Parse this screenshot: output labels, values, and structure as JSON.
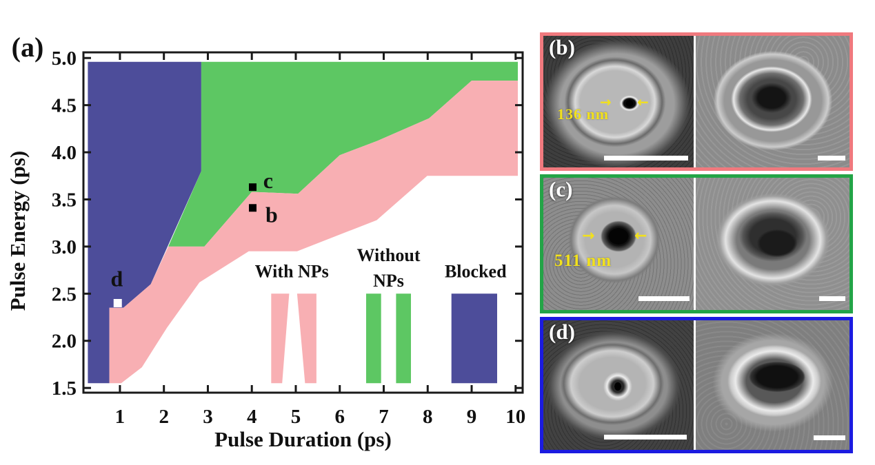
{
  "colors": {
    "annotation": "#F2E11D",
    "scale_bar": "#FFFFFF",
    "axis": "#1a1a1a",
    "region_blocked": "#4D4D9A",
    "region_without_nps": "#5DC763",
    "region_with_nps": "#F8AFB3"
  },
  "icons": {
    "arrow_right": "→",
    "arrow_left": "←"
  },
  "chart_data": {
    "type": "area",
    "title": "",
    "panel_label": "(a)",
    "xlabel": "Pulse Duration (ps)",
    "ylabel": "Pulse Energy (ps)",
    "xlim": [
      0.17,
      10.16
    ],
    "ylim": [
      1.45,
      5.06
    ],
    "xticks": [
      1,
      2,
      3,
      4,
      5,
      6,
      7,
      8,
      9,
      10
    ],
    "yticks": [
      1.5,
      2.0,
      2.5,
      3.0,
      3.5,
      4.0,
      4.5,
      5.0
    ],
    "grid": false,
    "legend_position": "inside lower right",
    "regions": [
      {
        "name": "Blocked",
        "color": "#4D4D9A",
        "points": [
          [
            0.27,
            1.55
          ],
          [
            0.76,
            1.55
          ],
          [
            0.76,
            2.35
          ],
          [
            1.08,
            2.35
          ],
          [
            1.7,
            2.6
          ],
          [
            2.85,
            3.8
          ],
          [
            2.85,
            4.96
          ],
          [
            0.27,
            4.96
          ]
        ]
      },
      {
        "name": "Without NPs",
        "color": "#5DC763",
        "points": [
          [
            2.1,
            3.0
          ],
          [
            2.92,
            3.0
          ],
          [
            4.0,
            3.58
          ],
          [
            5.05,
            3.56
          ],
          [
            6.0,
            3.97
          ],
          [
            6.85,
            4.12
          ],
          [
            8.03,
            4.36
          ],
          [
            9.0,
            4.76
          ],
          [
            10.05,
            4.76
          ],
          [
            10.05,
            4.96
          ],
          [
            2.85,
            4.96
          ],
          [
            2.85,
            3.8
          ]
        ]
      },
      {
        "name": "With NPs",
        "color": "#F8AFB3",
        "points": [
          [
            0.76,
            1.55
          ],
          [
            1.03,
            1.55
          ],
          [
            1.5,
            1.72
          ],
          [
            2.07,
            2.14
          ],
          [
            2.81,
            2.62
          ],
          [
            3.93,
            2.95
          ],
          [
            5.03,
            2.95
          ],
          [
            6.84,
            3.28
          ],
          [
            7.99,
            3.75
          ],
          [
            10.05,
            3.75
          ],
          [
            10.05,
            4.76
          ],
          [
            9.0,
            4.76
          ],
          [
            8.03,
            4.36
          ],
          [
            6.85,
            4.12
          ],
          [
            6.0,
            3.97
          ],
          [
            5.05,
            3.56
          ],
          [
            4.0,
            3.58
          ],
          [
            2.92,
            3.0
          ],
          [
            2.1,
            3.0
          ],
          [
            1.7,
            2.6
          ],
          [
            1.08,
            2.35
          ],
          [
            0.76,
            2.35
          ]
        ]
      }
    ],
    "markers": [
      {
        "name": "b",
        "x": 4.02,
        "y": 3.41,
        "fill": "#000000",
        "size": 11,
        "label": {
          "text": "b",
          "x": 4.45,
          "y": 3.34,
          "color": "#000000"
        }
      },
      {
        "name": "c",
        "x": 4.02,
        "y": 3.63,
        "fill": "#000000",
        "size": 11,
        "label": {
          "text": "c",
          "x": 4.37,
          "y": 3.7,
          "color": "#000000"
        }
      },
      {
        "name": "d",
        "x": 0.95,
        "y": 2.4,
        "fill": "#ffffff",
        "size": 12,
        "label": {
          "text": "d",
          "x": 0.93,
          "y": 2.66,
          "color": "#ffffff"
        }
      }
    ],
    "legend": {
      "items": [
        {
          "name": "With NPs",
          "color": "#F8AFB3",
          "texts": [
            {
              "text": "With NPs",
              "x": 4.91,
              "y": 2.74
            }
          ],
          "polygons": [
            [
              [
                4.44,
                2.5
              ],
              [
                4.85,
                2.5
              ],
              [
                4.69,
                1.55
              ],
              [
                4.44,
                1.55
              ]
            ],
            [
              [
                5.03,
                2.5
              ],
              [
                5.47,
                2.5
              ],
              [
                5.47,
                1.55
              ],
              [
                5.21,
                1.55
              ]
            ]
          ]
        },
        {
          "name": "Without NPs",
          "color": "#5DC763",
          "texts": [
            {
              "text": "Without",
              "x": 7.11,
              "y": 2.91
            },
            {
              "text": "NPs",
              "x": 7.11,
              "y": 2.64
            }
          ],
          "polygons": [
            [
              [
                6.6,
                2.5
              ],
              [
                6.94,
                2.5
              ],
              [
                6.94,
                1.55
              ],
              [
                6.6,
                1.55
              ]
            ],
            [
              [
                7.28,
                2.5
              ],
              [
                7.62,
                2.5
              ],
              [
                7.62,
                1.55
              ],
              [
                7.28,
                1.55
              ]
            ]
          ]
        },
        {
          "name": "Blocked",
          "color": "#4D4D9A",
          "texts": [
            {
              "text": "Blocked",
              "x": 9.09,
              "y": 2.74
            }
          ],
          "polygons": [
            [
              [
                8.54,
                2.5
              ],
              [
                9.58,
                2.5
              ],
              [
                9.58,
                1.55
              ],
              [
                8.54,
                1.55
              ]
            ]
          ]
        }
      ]
    }
  },
  "panels": [
    {
      "label": "(b)",
      "border_color": "#F0797E",
      "annotation": "136 nm"
    },
    {
      "label": "(c)",
      "border_color": "#23A447",
      "annotation": "511 nm"
    },
    {
      "label": "(d)",
      "border_color": "#1B1BE0",
      "annotation": ""
    }
  ]
}
